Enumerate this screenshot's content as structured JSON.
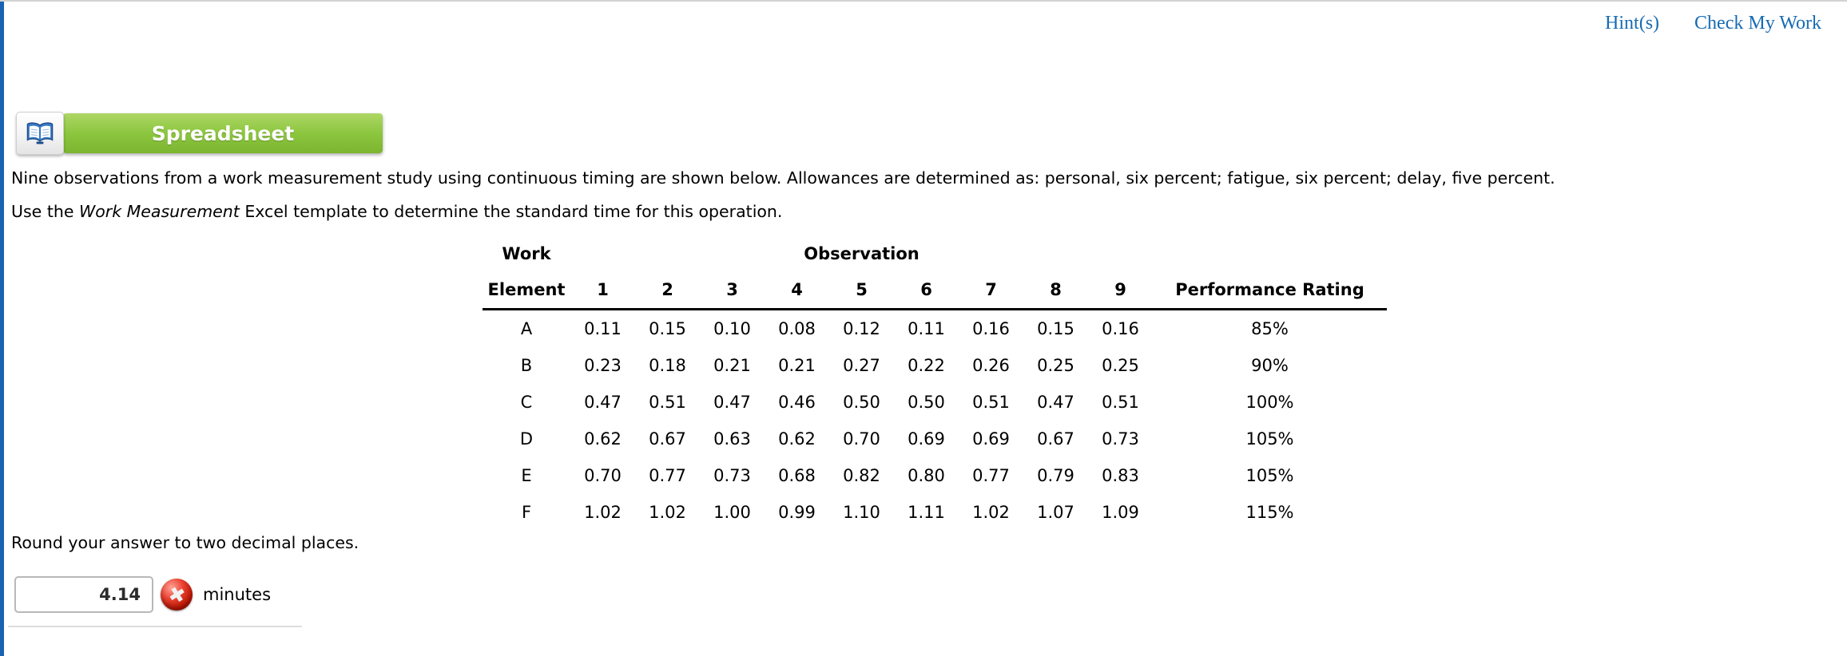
{
  "top_links": {
    "hints": "Hint(s)",
    "check_my_work": "Check My Work"
  },
  "spreadsheet_button": {
    "label": "Spreadsheet"
  },
  "problem": {
    "line1": "Nine observations from a work measurement study using continuous timing are shown below. Allowances are determined as: personal, six percent; fatigue, six percent; delay, five percent.",
    "line2_prefix": "Use the ",
    "line2_italic": "Work Measurement",
    "line2_suffix": " Excel template to determine the standard time for this operation."
  },
  "table": {
    "col_headers": {
      "work": "Work",
      "element": "Element",
      "observation": "Observation",
      "observation_numbers": [
        "1",
        "2",
        "3",
        "4",
        "5",
        "6",
        "7",
        "8",
        "9"
      ],
      "performance_rating": "Performance Rating"
    },
    "rows": [
      {
        "element": "A",
        "observations": [
          "0.11",
          "0.15",
          "0.10",
          "0.08",
          "0.12",
          "0.11",
          "0.16",
          "0.15",
          "0.16"
        ],
        "performance_rating": "85%"
      },
      {
        "element": "B",
        "observations": [
          "0.23",
          "0.18",
          "0.21",
          "0.21",
          "0.27",
          "0.22",
          "0.26",
          "0.25",
          "0.25"
        ],
        "performance_rating": "90%"
      },
      {
        "element": "C",
        "observations": [
          "0.47",
          "0.51",
          "0.47",
          "0.46",
          "0.50",
          "0.50",
          "0.51",
          "0.47",
          "0.51"
        ],
        "performance_rating": "100%"
      },
      {
        "element": "D",
        "observations": [
          "0.62",
          "0.67",
          "0.63",
          "0.62",
          "0.70",
          "0.69",
          "0.69",
          "0.67",
          "0.73"
        ],
        "performance_rating": "105%"
      },
      {
        "element": "E",
        "observations": [
          "0.70",
          "0.77",
          "0.73",
          "0.68",
          "0.82",
          "0.80",
          "0.77",
          "0.79",
          "0.83"
        ],
        "performance_rating": "105%"
      },
      {
        "element": "F",
        "observations": [
          "1.02",
          "1.02",
          "1.00",
          "0.99",
          "1.10",
          "1.11",
          "1.02",
          "1.07",
          "1.09"
        ],
        "performance_rating": "115%"
      }
    ]
  },
  "answer": {
    "instruction": "Round your answer to two decimal places.",
    "value": "4.14",
    "unit": "minutes",
    "status": "incorrect",
    "error_glyph": "✖"
  },
  "colors": {
    "accent_green": "#8cc63f",
    "link_blue": "#176bb3",
    "left_border_blue": "#1a62b3",
    "error_red": "#b51200"
  }
}
